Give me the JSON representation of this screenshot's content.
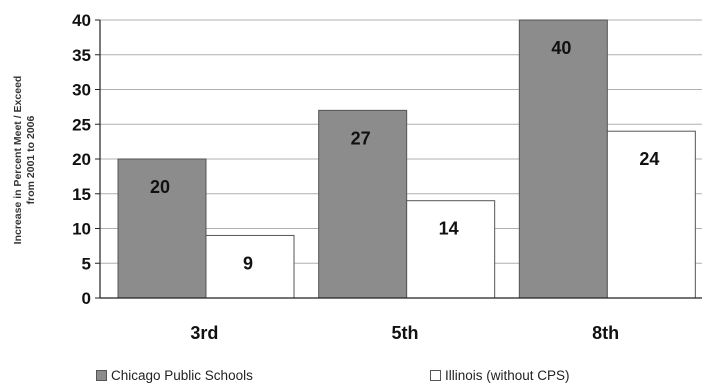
{
  "chart_data": {
    "type": "bar",
    "categories": [
      "3rd",
      "5th",
      "8th"
    ],
    "series": [
      {
        "name": "Chicago Public Schools",
        "values": [
          20,
          27,
          40
        ],
        "color": "#8c8c8c"
      },
      {
        "name": "Illinois (without CPS)",
        "values": [
          9,
          14,
          24
        ],
        "color": "#ffffff"
      }
    ],
    "ylabel_lines": [
      "Increase in Percent Meet / Exceed",
      "from 2001 to 2006"
    ],
    "ylim": [
      0,
      40
    ],
    "yticks": [
      0,
      5,
      10,
      15,
      20,
      25,
      30,
      35,
      40
    ],
    "grid": true,
    "legend_position": "bottom",
    "data_labels": true
  }
}
